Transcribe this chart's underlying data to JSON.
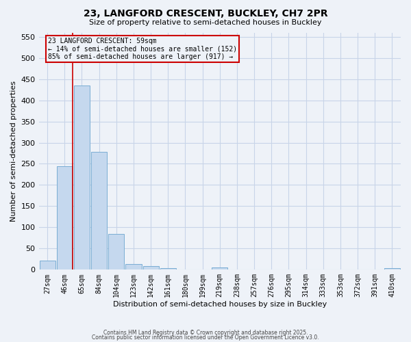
{
  "title1": "23, LANGFORD CRESCENT, BUCKLEY, CH7 2PR",
  "title2": "Size of property relative to semi-detached houses in Buckley",
  "xlabel": "Distribution of semi-detached houses by size in Buckley",
  "ylabel": "Number of semi-detached properties",
  "bar_labels": [
    "27sqm",
    "46sqm",
    "65sqm",
    "84sqm",
    "104sqm",
    "123sqm",
    "142sqm",
    "161sqm",
    "180sqm",
    "199sqm",
    "219sqm",
    "238sqm",
    "257sqm",
    "276sqm",
    "295sqm",
    "314sqm",
    "333sqm",
    "353sqm",
    "372sqm",
    "391sqm",
    "410sqm"
  ],
  "bar_values": [
    22,
    245,
    435,
    278,
    85,
    13,
    8,
    4,
    0,
    0,
    5,
    0,
    0,
    0,
    0,
    0,
    0,
    0,
    0,
    0,
    4
  ],
  "bar_color": "#c5d8ee",
  "bar_edge_color": "#7aadd4",
  "grid_color": "#c8d4e8",
  "background_color": "#eef2f8",
  "red_line_x": 1.45,
  "annotation_title": "23 LANGFORD CRESCENT: 59sqm",
  "annotation_line2": "← 14% of semi-detached houses are smaller (152)",
  "annotation_line3": "85% of semi-detached houses are larger (917) →",
  "annotation_box_color": "#cc0000",
  "ylim": [
    0,
    560
  ],
  "yticks": [
    0,
    50,
    100,
    150,
    200,
    250,
    300,
    350,
    400,
    450,
    500,
    550
  ],
  "footer1": "Contains HM Land Registry data © Crown copyright and database right 2025.",
  "footer2": "Contains public sector information licensed under the Open Government Licence v3.0."
}
